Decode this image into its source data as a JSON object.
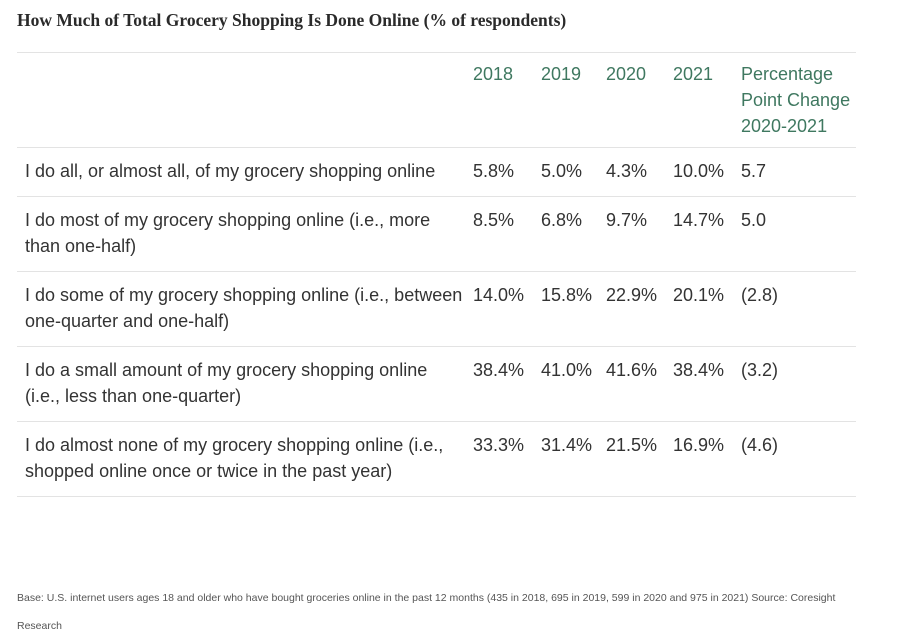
{
  "title": "How Much of Total Grocery Shopping Is Done Online (% of respondents)",
  "chart_data": {
    "type": "table",
    "columns": [
      "",
      "2018",
      "2019",
      "2020",
      "2021",
      "Percentage Point Change 2020-2021"
    ],
    "rows": [
      {
        "label": "I do all, or almost all, of my grocery shopping online",
        "values": [
          "5.8%",
          "5.0%",
          "4.3%",
          "10.0%",
          "5.7"
        ]
      },
      {
        "label": "I do most of my grocery shopping online (i.e., more than one-half)",
        "values": [
          "8.5%",
          "6.8%",
          "9.7%",
          "14.7%",
          "5.0"
        ]
      },
      {
        "label": "I do some of my grocery shopping online (i.e., between one-quarter and one-half)",
        "values": [
          "14.0%",
          "15.8%",
          "22.9%",
          "20.1%",
          "(2.8)"
        ]
      },
      {
        "label": "I do a small amount of my grocery shopping online (i.e., less than one-quarter)",
        "values": [
          "38.4%",
          "41.0%",
          "41.6%",
          "38.4%",
          "(3.2)"
        ]
      },
      {
        "label": "I do almost none of my grocery shopping online (i.e., shopped online once or twice in the past year)",
        "values": [
          "33.3%",
          "31.4%",
          "21.5%",
          "16.9%",
          "(4.6)"
        ]
      }
    ]
  },
  "footnote": "Base: U.S. internet users ages 18 and older who have bought groceries online in the past 12 months (435 in 2018, 695 in 2019, 599 in 2020 and 975 in 2021) Source: Coresight Research",
  "colors": {
    "header_text": "#3f7860",
    "body_text": "#333333",
    "rule": "#e3e3e3"
  }
}
